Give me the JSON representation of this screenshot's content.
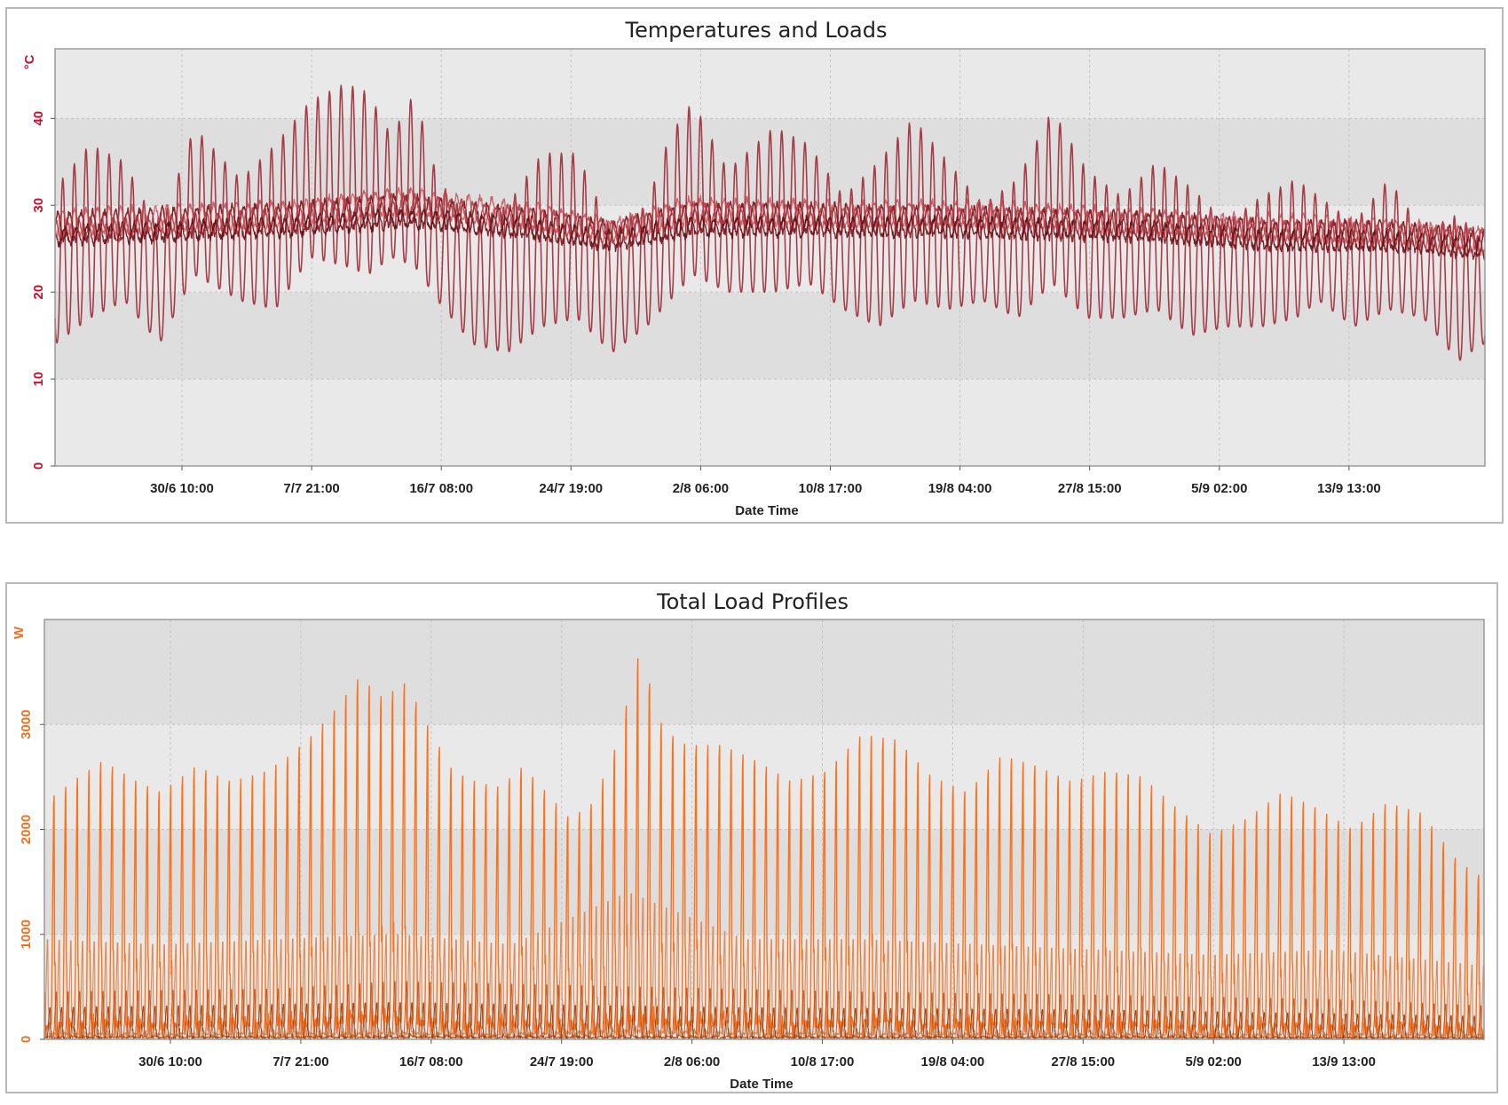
{
  "chart_data": [
    {
      "id": "temp",
      "type": "line",
      "title": "Temperatures and Loads",
      "xlabel": "Date Time",
      "ylabel": "°C",
      "x_tick_labels": [
        "30/6 10:00",
        "7/7 21:00",
        "16/7 08:00",
        "24/7 19:00",
        "2/8 06:00",
        "10/8 17:00",
        "19/8 04:00",
        "27/8 15:00",
        "5/9 02:00",
        "13/9 13:00"
      ],
      "y_ticks": [
        0,
        10,
        20,
        30,
        40
      ],
      "ylim": [
        0,
        48
      ],
      "x_range_days": [
        0,
        110
      ],
      "grid": true,
      "band_colors": [
        "#e9e9e9",
        "#dedede"
      ],
      "axis_color": "#c8102e",
      "series": [
        {
          "color": "#9e2b36",
          "width": 1.6,
          "opacity": 0.9,
          "kind": "outdoor",
          "daily": [
            {
              "day": 0,
              "max": 32,
              "min": 14
            },
            {
              "day": 3,
              "max": 37,
              "min": 17
            },
            {
              "day": 6,
              "max": 35,
              "min": 19
            },
            {
              "day": 9,
              "max": 27,
              "min": 14
            },
            {
              "day": 12,
              "max": 39,
              "min": 22
            },
            {
              "day": 16,
              "max": 33,
              "min": 19
            },
            {
              "day": 19,
              "max": 37,
              "min": 18
            },
            {
              "day": 22,
              "max": 42,
              "min": 24
            },
            {
              "day": 25,
              "max": 44,
              "min": 23
            },
            {
              "day": 27,
              "max": 43,
              "min": 22
            },
            {
              "day": 29,
              "max": 38,
              "min": 24
            },
            {
              "day": 31,
              "max": 43,
              "min": 23
            },
            {
              "day": 33,
              "max": 33,
              "min": 19
            },
            {
              "day": 36,
              "max": 28,
              "min": 14
            },
            {
              "day": 39,
              "max": 30,
              "min": 13
            },
            {
              "day": 42,
              "max": 36,
              "min": 16
            },
            {
              "day": 45,
              "max": 36,
              "min": 17
            },
            {
              "day": 48,
              "max": 27,
              "min": 13
            },
            {
              "day": 51,
              "max": 30,
              "min": 16
            },
            {
              "day": 53,
              "max": 38,
              "min": 19
            },
            {
              "day": 55,
              "max": 42,
              "min": 22
            },
            {
              "day": 58,
              "max": 34,
              "min": 20
            },
            {
              "day": 62,
              "max": 39,
              "min": 20
            },
            {
              "day": 65,
              "max": 37,
              "min": 21
            },
            {
              "day": 68,
              "max": 31,
              "min": 18
            },
            {
              "day": 71,
              "max": 35,
              "min": 16
            },
            {
              "day": 74,
              "max": 40,
              "min": 19
            },
            {
              "day": 77,
              "max": 35,
              "min": 18
            },
            {
              "day": 80,
              "max": 30,
              "min": 19
            },
            {
              "day": 83,
              "max": 33,
              "min": 17
            },
            {
              "day": 86,
              "max": 41,
              "min": 21
            },
            {
              "day": 89,
              "max": 34,
              "min": 17
            },
            {
              "day": 92,
              "max": 31,
              "min": 17
            },
            {
              "day": 95,
              "max": 35,
              "min": 18
            },
            {
              "day": 98,
              "max": 32,
              "min": 15
            },
            {
              "day": 101,
              "max": 28,
              "min": 16
            },
            {
              "day": 104,
              "max": 31,
              "min": 16
            },
            {
              "day": 107,
              "max": 33,
              "min": 17
            },
            {
              "day": 109,
              "max": 31,
              "min": 19
            },
            {
              "day": 112,
              "max": 28,
              "min": 16
            },
            {
              "day": 115,
              "max": 33,
              "min": 18
            },
            {
              "day": 118,
              "max": 27,
              "min": 17
            },
            {
              "day": 121,
              "max": 29,
              "min": 12
            },
            {
              "day": 123,
              "max": 26,
              "min": 14
            }
          ]
        },
        {
          "color": "#7a1118",
          "width": 1.5,
          "opacity": 0.9,
          "kind": "indoor",
          "amp": 1.6,
          "phase": 0.0,
          "trend": [
            {
              "day": 0,
              "v": 27.5
            },
            {
              "day": 10,
              "v": 28
            },
            {
              "day": 20,
              "v": 28.5
            },
            {
              "day": 30,
              "v": 29.5
            },
            {
              "day": 40,
              "v": 28
            },
            {
              "day": 48,
              "v": 26.5
            },
            {
              "day": 55,
              "v": 28.5
            },
            {
              "day": 65,
              "v": 28.5
            },
            {
              "day": 80,
              "v": 28
            },
            {
              "day": 95,
              "v": 27.5
            },
            {
              "day": 105,
              "v": 26.5
            },
            {
              "day": 115,
              "v": 26.5
            },
            {
              "day": 123,
              "v": 25.5
            }
          ]
        },
        {
          "color": "#b0303a",
          "width": 1.4,
          "opacity": 0.85,
          "kind": "indoor",
          "amp": 1.2,
          "phase": 1.3,
          "trend": [
            {
              "day": 0,
              "v": 27
            },
            {
              "day": 10,
              "v": 27.5
            },
            {
              "day": 20,
              "v": 28.5
            },
            {
              "day": 30,
              "v": 30
            },
            {
              "day": 40,
              "v": 28.5
            },
            {
              "day": 48,
              "v": 27
            },
            {
              "day": 55,
              "v": 29
            },
            {
              "day": 65,
              "v": 28.5
            },
            {
              "day": 80,
              "v": 28.5
            },
            {
              "day": 95,
              "v": 27.5
            },
            {
              "day": 105,
              "v": 27
            },
            {
              "day": 115,
              "v": 26.5
            },
            {
              "day": 123,
              "v": 26
            }
          ]
        },
        {
          "color": "#5e0d12",
          "width": 1.3,
          "opacity": 0.9,
          "kind": "indoor",
          "amp": 1.0,
          "phase": 2.6,
          "trend": [
            {
              "day": 0,
              "v": 26.5
            },
            {
              "day": 10,
              "v": 27
            },
            {
              "day": 20,
              "v": 27.5
            },
            {
              "day": 30,
              "v": 28.5
            },
            {
              "day": 40,
              "v": 27.5
            },
            {
              "day": 48,
              "v": 26
            },
            {
              "day": 55,
              "v": 27.5
            },
            {
              "day": 65,
              "v": 27.5
            },
            {
              "day": 80,
              "v": 27.5
            },
            {
              "day": 95,
              "v": 27
            },
            {
              "day": 105,
              "v": 26
            },
            {
              "day": 115,
              "v": 26
            },
            {
              "day": 123,
              "v": 25
            }
          ]
        },
        {
          "color": "#c5404a",
          "width": 1.2,
          "opacity": 0.8,
          "kind": "indoor",
          "amp": 1.4,
          "phase": 3.7,
          "trend": [
            {
              "day": 0,
              "v": 28
            },
            {
              "day": 10,
              "v": 28.5
            },
            {
              "day": 20,
              "v": 29
            },
            {
              "day": 30,
              "v": 30.5
            },
            {
              "day": 40,
              "v": 29
            },
            {
              "day": 48,
              "v": 27
            },
            {
              "day": 55,
              "v": 29.5
            },
            {
              "day": 65,
              "v": 29
            },
            {
              "day": 80,
              "v": 29
            },
            {
              "day": 95,
              "v": 28
            },
            {
              "day": 105,
              "v": 27.5
            },
            {
              "day": 115,
              "v": 27
            },
            {
              "day": 123,
              "v": 26
            }
          ]
        }
      ]
    },
    {
      "id": "load",
      "type": "line",
      "title": "Total Load Profiles",
      "xlabel": "Date Time",
      "ylabel": "W",
      "x_tick_labels": [
        "30/6 10:00",
        "7/7 21:00",
        "16/7 08:00",
        "24/7 19:00",
        "2/8 06:00",
        "10/8 17:00",
        "19/8 04:00",
        "27/8 15:00",
        "5/9 02:00",
        "13/9 13:00"
      ],
      "y_ticks": [
        0,
        1000,
        2000,
        3000
      ],
      "ylim": [
        0,
        4000
      ],
      "x_range_days": [
        0,
        110
      ],
      "grid": true,
      "band_colors": [
        "#e9e9e9",
        "#dedede"
      ],
      "axis_color": "#f07020",
      "series": [
        {
          "color": "#ff6a10",
          "width": 1.4,
          "opacity": 0.95,
          "kind": "peak",
          "offset": 0.75,
          "peaks": [
            {
              "day": 0,
              "v": 2250
            },
            {
              "day": 3,
              "v": 2500
            },
            {
              "day": 5,
              "v": 2650
            },
            {
              "day": 8,
              "v": 2450
            },
            {
              "day": 10,
              "v": 2350
            },
            {
              "day": 13,
              "v": 2600
            },
            {
              "day": 16,
              "v": 2450
            },
            {
              "day": 19,
              "v": 2550
            },
            {
              "day": 21,
              "v": 2700
            },
            {
              "day": 23,
              "v": 2900
            },
            {
              "day": 25,
              "v": 3150
            },
            {
              "day": 27,
              "v": 3450
            },
            {
              "day": 29,
              "v": 3250
            },
            {
              "day": 31,
              "v": 3400
            },
            {
              "day": 33,
              "v": 2950
            },
            {
              "day": 35,
              "v": 2550
            },
            {
              "day": 37,
              "v": 2450
            },
            {
              "day": 39,
              "v": 2400
            },
            {
              "day": 41,
              "v": 2600
            },
            {
              "day": 43,
              "v": 2350
            },
            {
              "day": 45,
              "v": 2100
            },
            {
              "day": 47,
              "v": 2250
            },
            {
              "day": 49,
              "v": 2800
            },
            {
              "day": 51,
              "v": 3700
            },
            {
              "day": 53,
              "v": 2950
            },
            {
              "day": 55,
              "v": 2800
            },
            {
              "day": 58,
              "v": 2800
            },
            {
              "day": 61,
              "v": 2650
            },
            {
              "day": 64,
              "v": 2450
            },
            {
              "day": 67,
              "v": 2550
            },
            {
              "day": 70,
              "v": 2900
            },
            {
              "day": 73,
              "v": 2850
            },
            {
              "day": 76,
              "v": 2500
            },
            {
              "day": 79,
              "v": 2350
            },
            {
              "day": 82,
              "v": 2700
            },
            {
              "day": 85,
              "v": 2600
            },
            {
              "day": 88,
              "v": 2450
            },
            {
              "day": 91,
              "v": 2550
            },
            {
              "day": 94,
              "v": 2500
            },
            {
              "day": 97,
              "v": 2200
            },
            {
              "day": 100,
              "v": 1950
            },
            {
              "day": 103,
              "v": 2100
            },
            {
              "day": 106,
              "v": 2350
            },
            {
              "day": 109,
              "v": 2200
            },
            {
              "day": 112,
              "v": 2000
            },
            {
              "day": 115,
              "v": 2250
            },
            {
              "day": 118,
              "v": 2150
            },
            {
              "day": 121,
              "v": 1700
            },
            {
              "day": 123,
              "v": 1550
            }
          ]
        },
        {
          "color": "#d9824a",
          "width": 1.1,
          "opacity": 0.9,
          "kind": "peak",
          "offset": 0.3,
          "peaks": [
            {
              "day": 0,
              "v": 950
            },
            {
              "day": 10,
              "v": 900
            },
            {
              "day": 20,
              "v": 950
            },
            {
              "day": 30,
              "v": 1000
            },
            {
              "day": 40,
              "v": 900
            },
            {
              "day": 50,
              "v": 1400
            },
            {
              "day": 60,
              "v": 950
            },
            {
              "day": 70,
              "v": 950
            },
            {
              "day": 80,
              "v": 900
            },
            {
              "day": 90,
              "v": 850
            },
            {
              "day": 100,
              "v": 800
            },
            {
              "day": 110,
              "v": 850
            },
            {
              "day": 123,
              "v": 700
            }
          ]
        },
        {
          "color": "#c85010",
          "width": 1.0,
          "opacity": 0.9,
          "kind": "peak",
          "offset": 0.55,
          "peaks": [
            {
              "day": 0,
              "v": 450
            },
            {
              "day": 20,
              "v": 480
            },
            {
              "day": 30,
              "v": 550
            },
            {
              "day": 50,
              "v": 500
            },
            {
              "day": 70,
              "v": 450
            },
            {
              "day": 90,
              "v": 420
            },
            {
              "day": 110,
              "v": 380
            },
            {
              "day": 123,
              "v": 320
            }
          ]
        },
        {
          "color": "#8a3a10",
          "width": 1.0,
          "opacity": 0.9,
          "kind": "peak",
          "offset": 0.1,
          "peaks": [
            {
              "day": 0,
              "v": 300
            },
            {
              "day": 30,
              "v": 350
            },
            {
              "day": 60,
              "v": 300
            },
            {
              "day": 90,
              "v": 280
            },
            {
              "day": 123,
              "v": 220
            }
          ]
        }
      ]
    }
  ]
}
